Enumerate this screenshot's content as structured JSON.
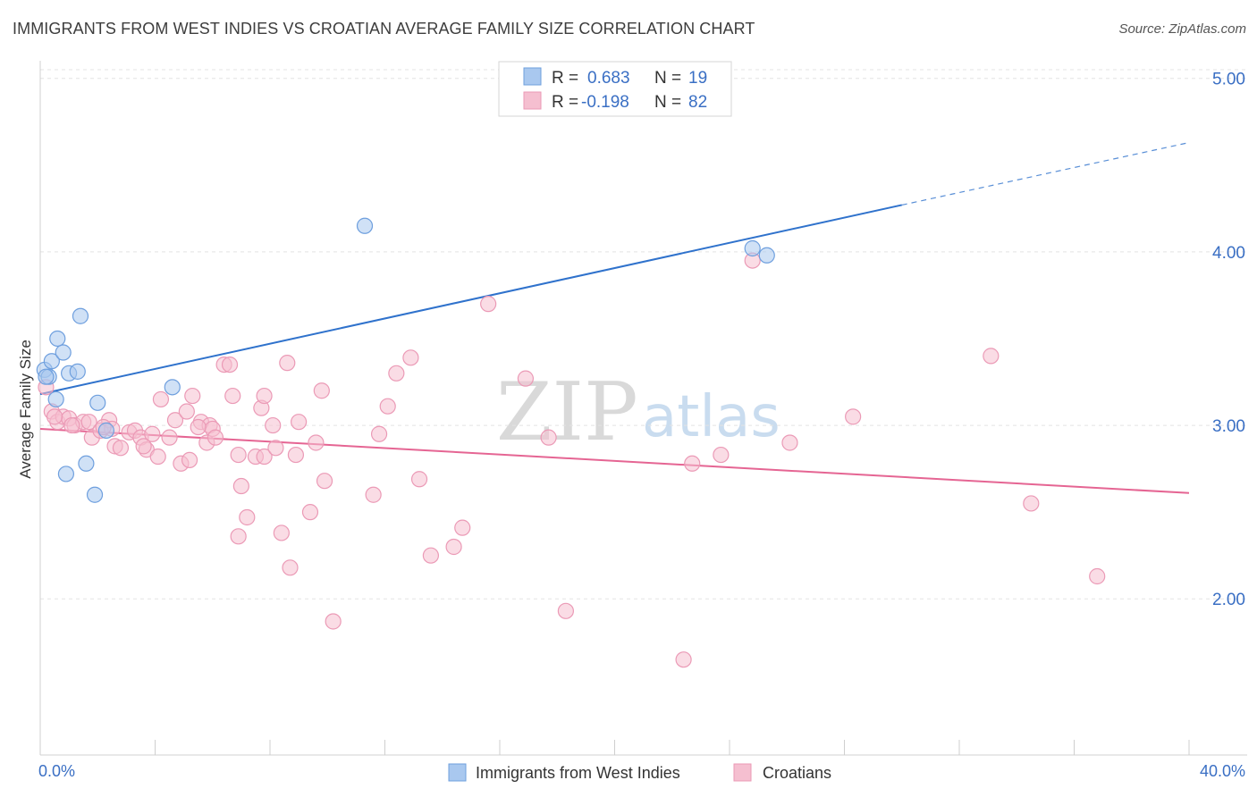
{
  "title": "IMMIGRANTS FROM WEST INDIES VS CROATIAN AVERAGE FAMILY SIZE CORRELATION CHART",
  "source": "Source: ZipAtlas.com",
  "watermark": {
    "zip": "ZIP",
    "atlas": "atlas"
  },
  "legend": {
    "series1": {
      "r_label": "R =",
      "r_value": "0.683",
      "n_label": "N =",
      "n_value": "19"
    },
    "series2": {
      "r_label": "R =",
      "r_value": "-0.198",
      "n_label": "N =",
      "n_value": "82"
    }
  },
  "bottom_legend": {
    "series1": "Immigrants from West Indies",
    "series2": "Croatians"
  },
  "colors": {
    "blue_fill": "#a9c8ef",
    "blue_stroke": "#6e9fde",
    "blue_line": "#2f72cc",
    "pink_fill": "#f5bfd0",
    "pink_stroke": "#eb9ab6",
    "pink_line": "#e56593",
    "tick_text": "#3a6fc4"
  },
  "chart_data": {
    "type": "scatter",
    "title": "IMMIGRANTS FROM WEST INDIES VS CROATIAN AVERAGE FAMILY SIZE CORRELATION CHART",
    "xlabel": "",
    "ylabel": "Average Family Size",
    "xlim": [
      0,
      40
    ],
    "ylim": [
      1.1,
      5.05
    ],
    "x_tick_labels": [
      "0.0%",
      "40.0%"
    ],
    "y_ticks": [
      2.0,
      3.0,
      4.0,
      5.0
    ],
    "y_tick_labels": [
      "2.00",
      "3.00",
      "4.00",
      "5.00"
    ],
    "grid": true,
    "series": [
      {
        "name": "Immigrants from West Indies",
        "color": "blue",
        "points": [
          [
            0.15,
            3.32
          ],
          [
            0.3,
            3.28
          ],
          [
            0.4,
            3.37
          ],
          [
            0.6,
            3.5
          ],
          [
            0.55,
            3.15
          ],
          [
            0.8,
            3.42
          ],
          [
            0.9,
            2.72
          ],
          [
            1.0,
            3.3
          ],
          [
            1.3,
            3.31
          ],
          [
            1.4,
            3.63
          ],
          [
            1.6,
            2.78
          ],
          [
            1.9,
            2.6
          ],
          [
            2.0,
            3.13
          ],
          [
            2.3,
            2.97
          ],
          [
            4.6,
            3.22
          ],
          [
            11.3,
            4.15
          ],
          [
            24.8,
            4.02
          ],
          [
            25.3,
            3.98
          ],
          [
            0.2,
            3.28
          ]
        ],
        "trend": {
          "x0": 0,
          "y0": 3.18,
          "x1": 30,
          "y1": 4.27,
          "dash_x1": 40,
          "dash_y1": 4.63
        }
      },
      {
        "name": "Croatians",
        "color": "pink",
        "points": [
          [
            0.2,
            3.22
          ],
          [
            0.4,
            3.08
          ],
          [
            0.6,
            3.02
          ],
          [
            0.8,
            3.05
          ],
          [
            1.0,
            3.04
          ],
          [
            1.2,
            3.0
          ],
          [
            1.5,
            3.02
          ],
          [
            1.7,
            3.02
          ],
          [
            1.8,
            2.93
          ],
          [
            2.1,
            2.97
          ],
          [
            2.4,
            3.03
          ],
          [
            2.5,
            2.98
          ],
          [
            2.6,
            2.88
          ],
          [
            2.8,
            2.87
          ],
          [
            3.1,
            2.96
          ],
          [
            3.3,
            2.97
          ],
          [
            3.5,
            2.93
          ],
          [
            3.7,
            2.86
          ],
          [
            3.9,
            2.95
          ],
          [
            4.1,
            2.82
          ],
          [
            4.2,
            3.15
          ],
          [
            4.5,
            2.93
          ],
          [
            4.7,
            3.03
          ],
          [
            4.9,
            2.78
          ],
          [
            5.1,
            3.08
          ],
          [
            5.2,
            2.8
          ],
          [
            5.3,
            3.17
          ],
          [
            5.6,
            3.02
          ],
          [
            5.8,
            2.9
          ],
          [
            5.9,
            3.0
          ],
          [
            6.0,
            2.98
          ],
          [
            6.1,
            2.93
          ],
          [
            6.4,
            3.35
          ],
          [
            6.6,
            3.35
          ],
          [
            6.7,
            3.17
          ],
          [
            6.9,
            2.83
          ],
          [
            7.0,
            2.65
          ],
          [
            7.2,
            2.47
          ],
          [
            6.9,
            2.36
          ],
          [
            7.5,
            2.82
          ],
          [
            7.7,
            3.1
          ],
          [
            7.8,
            3.17
          ],
          [
            7.8,
            2.82
          ],
          [
            8.1,
            3.0
          ],
          [
            8.2,
            2.87
          ],
          [
            8.4,
            2.38
          ],
          [
            8.6,
            3.36
          ],
          [
            8.7,
            2.18
          ],
          [
            8.9,
            2.83
          ],
          [
            9.0,
            3.02
          ],
          [
            9.4,
            2.5
          ],
          [
            9.6,
            2.9
          ],
          [
            9.8,
            3.2
          ],
          [
            9.9,
            2.68
          ],
          [
            10.2,
            1.87
          ],
          [
            11.6,
            2.6
          ],
          [
            11.8,
            2.95
          ],
          [
            12.1,
            3.11
          ],
          [
            12.4,
            3.3
          ],
          [
            12.9,
            3.39
          ],
          [
            13.2,
            2.69
          ],
          [
            13.6,
            2.25
          ],
          [
            14.4,
            2.3
          ],
          [
            14.7,
            2.41
          ],
          [
            15.6,
            3.7
          ],
          [
            16.9,
            3.27
          ],
          [
            17.7,
            2.93
          ],
          [
            18.3,
            1.93
          ],
          [
            22.4,
            1.65
          ],
          [
            22.7,
            2.78
          ],
          [
            23.7,
            2.83
          ],
          [
            24.8,
            3.95
          ],
          [
            26.1,
            2.9
          ],
          [
            28.3,
            3.05
          ],
          [
            33.1,
            3.4
          ],
          [
            34.5,
            2.55
          ],
          [
            36.8,
            2.13
          ],
          [
            0.5,
            3.05
          ],
          [
            1.1,
            3.0
          ],
          [
            3.6,
            2.88
          ],
          [
            2.2,
            2.99
          ],
          [
            5.5,
            2.99
          ]
        ],
        "trend": {
          "x0": 0,
          "y0": 2.98,
          "x1": 40,
          "y1": 2.61
        }
      }
    ]
  }
}
